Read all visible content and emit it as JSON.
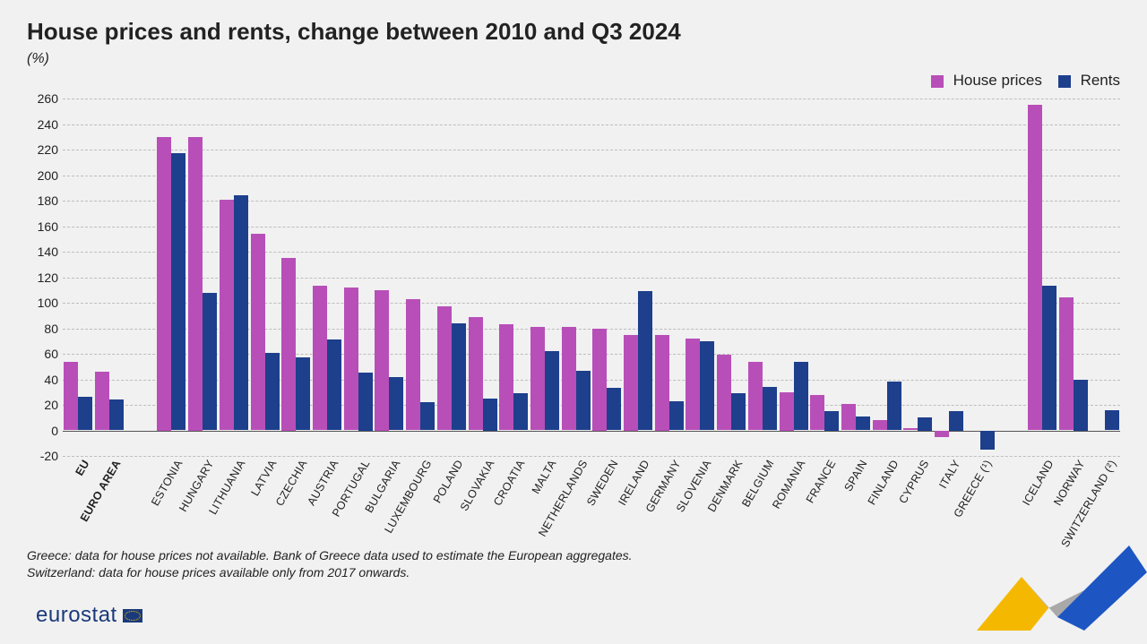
{
  "title": "House prices and rents, change between 2010 and Q3 2024",
  "subtitle": "(%)",
  "legend": {
    "house_prices": {
      "label": "House prices",
      "color": "#b84fb8"
    },
    "rents": {
      "label": "Rents",
      "color": "#1d3f8c"
    }
  },
  "chart": {
    "type": "bar",
    "ylim_min": -20,
    "ylim_max": 260,
    "ytick_step": 20,
    "grid_color": "#bdbdbd",
    "baseline_color": "#555555",
    "background_color": "#f1f1f1",
    "bar_colors": {
      "house_prices": "#b84fb8",
      "rents": "#1d3f8c"
    },
    "label_fontsize": 12.5,
    "tick_fontsize": 14,
    "group_gap_after_indices": [
      1,
      28
    ],
    "series": [
      {
        "label": "EU",
        "bold": true,
        "house_prices": 54,
        "rents": 26
      },
      {
        "label": "EURO AREA",
        "bold": true,
        "house_prices": 46,
        "rents": 24
      },
      {
        "label": "ESTONIA",
        "house_prices": 230,
        "rents": 217
      },
      {
        "label": "HUNGARY",
        "house_prices": 230,
        "rents": 108
      },
      {
        "label": "LITHUANIA",
        "house_prices": 181,
        "rents": 184
      },
      {
        "label": "LATVIA",
        "house_prices": 154,
        "rents": 61
      },
      {
        "label": "CZECHIA",
        "house_prices": 135,
        "rents": 57
      },
      {
        "label": "AUSTRIA",
        "house_prices": 113,
        "rents": 71
      },
      {
        "label": "PORTUGAL",
        "house_prices": 112,
        "rents": 45
      },
      {
        "label": "BULGARIA",
        "house_prices": 110,
        "rents": 42
      },
      {
        "label": "LUXEMBOURG",
        "house_prices": 103,
        "rents": 22
      },
      {
        "label": "POLAND",
        "house_prices": 97,
        "rents": 84
      },
      {
        "label": "SLOVAKIA",
        "house_prices": 89,
        "rents": 25
      },
      {
        "label": "CROATIA",
        "house_prices": 83,
        "rents": 29
      },
      {
        "label": "MALTA",
        "house_prices": 81,
        "rents": 62
      },
      {
        "label": "NETHERLANDS",
        "house_prices": 81,
        "rents": 47
      },
      {
        "label": "SWEDEN",
        "house_prices": 80,
        "rents": 33
      },
      {
        "label": "IRELAND",
        "house_prices": 75,
        "rents": 109
      },
      {
        "label": "GERMANY",
        "house_prices": 75,
        "rents": 23
      },
      {
        "label": "SLOVENIA",
        "house_prices": 72,
        "rents": 70
      },
      {
        "label": "DENMARK",
        "house_prices": 59,
        "rents": 29
      },
      {
        "label": "BELGIUM",
        "house_prices": 54,
        "rents": 34
      },
      {
        "label": "ROMANIA",
        "house_prices": 30,
        "rents": 54
      },
      {
        "label": "FRANCE",
        "house_prices": 28,
        "rents": 15
      },
      {
        "label": "SPAIN",
        "house_prices": 21,
        "rents": 11
      },
      {
        "label": "FINLAND",
        "house_prices": 8,
        "rents": 38
      },
      {
        "label": "CYPRUS",
        "house_prices": 2,
        "rents": 10
      },
      {
        "label": "ITALY",
        "house_prices": -5,
        "rents": 15
      },
      {
        "label": "GREECE (¹)",
        "house_prices": null,
        "rents": -15
      },
      {
        "label": "ICELAND",
        "house_prices": 255,
        "rents": 113
      },
      {
        "label": "NORWAY",
        "house_prices": 104,
        "rents": 40
      },
      {
        "label": "SWITZERLAND (²)",
        "house_prices": null,
        "rents": 16
      }
    ]
  },
  "footnotes": {
    "line1": "Greece: data for house prices not available. Bank of Greece data used to estimate the European aggregates.",
    "line2": "Switzerland: data for house prices available only from 2017 onwards."
  },
  "logo_text": "eurostat",
  "decor": {
    "yellow": "#f5b800",
    "grey": "#a9a9a9",
    "blue": "#1d56c3"
  }
}
